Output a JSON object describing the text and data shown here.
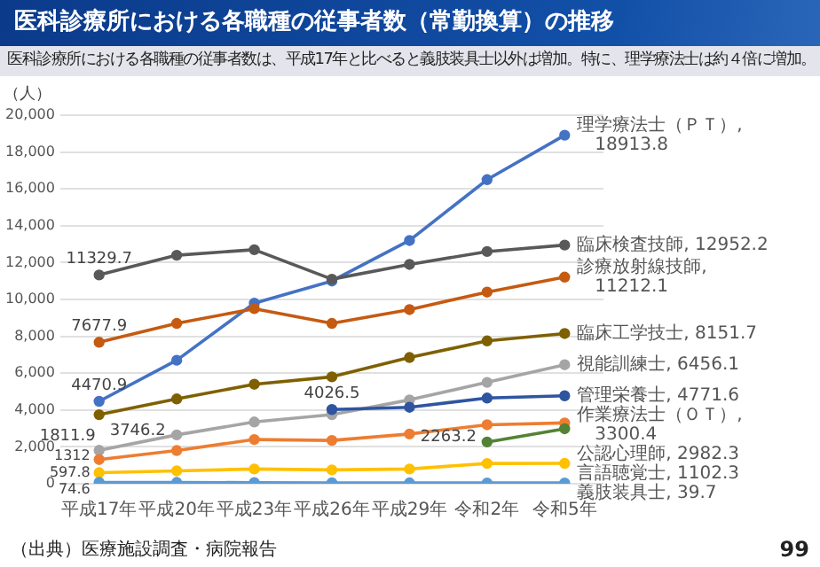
{
  "chart_data": {
    "type": "line",
    "title": "医科診療所における各職種の従事者数（常勤換算）の推移",
    "subtitle": "医科診療所における各職種の従事者数は、平成17年と比べると義肢装具士以外は増加。特に、理学療法士は約４倍に増加。",
    "ylabel": "（人）",
    "annotations": [
      "（出典）医療施設調査・病院報告",
      "99"
    ],
    "categories": [
      "平成17年",
      "平成20年",
      "平成23年",
      "平成26年",
      "平成29年",
      "令和2年",
      "令和5年"
    ],
    "ylim": [
      0,
      20000
    ],
    "yticks": [
      {
        "value": 0,
        "label": "0"
      },
      {
        "value": 2000,
        "label": "2,000"
      },
      {
        "value": 4000,
        "label": "4,000"
      },
      {
        "value": 6000,
        "label": "6,000"
      },
      {
        "value": 8000,
        "label": "8,000"
      },
      {
        "value": 10000,
        "label": "10,000"
      },
      {
        "value": 12000,
        "label": "12,000"
      },
      {
        "value": 14000,
        "label": "14,000"
      },
      {
        "value": 16000,
        "label": "16,000"
      },
      {
        "value": 18000,
        "label": "18,000"
      },
      {
        "value": 20000,
        "label": "20,000"
      }
    ],
    "grid": "y",
    "legend": false,
    "marker": "circle",
    "line_style": "solid",
    "series": [
      {
        "name": "理学療法士（ＰＴ）,",
        "color": "#4472c4",
        "values": [
          4470.9,
          6700,
          9800,
          11000,
          13200,
          16500,
          18913.8
        ],
        "value_labels": [
          "4470.9",
          null,
          null,
          null,
          null,
          null,
          "18913.8"
        ]
      },
      {
        "name": "臨床検査技師,",
        "color": "#595959",
        "values": [
          11329.7,
          12400,
          12700,
          11100,
          11900,
          12600,
          12952.2
        ],
        "value_labels": [
          "11329.7",
          null,
          null,
          null,
          null,
          null,
          "12952.2"
        ]
      },
      {
        "name": "診療放射線技師,",
        "color": "#c55a11",
        "values": [
          7677.9,
          8700,
          9500,
          8700,
          9450,
          10400,
          11212.1
        ],
        "value_labels": [
          "7677.9",
          null,
          null,
          null,
          null,
          null,
          "11212.1"
        ]
      },
      {
        "name": "臨床工学技士,",
        "color": "#7f6000",
        "values": [
          3746.2,
          4600,
          5400,
          5800,
          6850,
          7750,
          8151.7
        ],
        "value_labels": [
          "3746.2",
          null,
          null,
          null,
          null,
          null,
          "8151.7"
        ]
      },
      {
        "name": "視能訓練士,",
        "color": "#a5a5a5",
        "values": [
          1811.9,
          2650,
          3350,
          3750,
          4550,
          5500,
          6456.1
        ],
        "value_labels": [
          "1811.9",
          null,
          null,
          null,
          null,
          null,
          "6456.1"
        ]
      },
      {
        "name": "管理栄養士,",
        "color": "#2f55a0",
        "values": [
          null,
          null,
          null,
          4026.5,
          4150,
          4650,
          4771.6
        ],
        "value_labels": [
          null,
          null,
          null,
          "4026.5",
          null,
          null,
          "4771.6"
        ]
      },
      {
        "name": "作業療法士（ＯＴ）,",
        "color": "#ed7d31",
        "values": [
          1312,
          1800,
          2400,
          2350,
          2700,
          3200,
          3300.4
        ],
        "value_labels": [
          "1312",
          null,
          null,
          null,
          null,
          null,
          "3300.4"
        ]
      },
      {
        "name": "公認心理師,",
        "color": "#548235",
        "values": [
          null,
          null,
          null,
          null,
          null,
          2263.2,
          2982.3
        ],
        "value_labels": [
          null,
          null,
          null,
          null,
          null,
          "2263.2",
          "2982.3"
        ]
      },
      {
        "name": "言語聴覚士,",
        "color": "#ffc000",
        "values": [
          597.8,
          700,
          800,
          750,
          800,
          1100,
          1102.3
        ],
        "value_labels": [
          "597.8",
          null,
          null,
          null,
          null,
          null,
          "1102.3"
        ]
      },
      {
        "name": "義肢装具士,",
        "color": "#5b9bd5",
        "values": [
          74.6,
          70,
          60,
          50,
          45,
          40,
          39.7
        ],
        "value_labels": [
          "74.6",
          null,
          null,
          null,
          null,
          null,
          "39.7"
        ]
      }
    ]
  }
}
